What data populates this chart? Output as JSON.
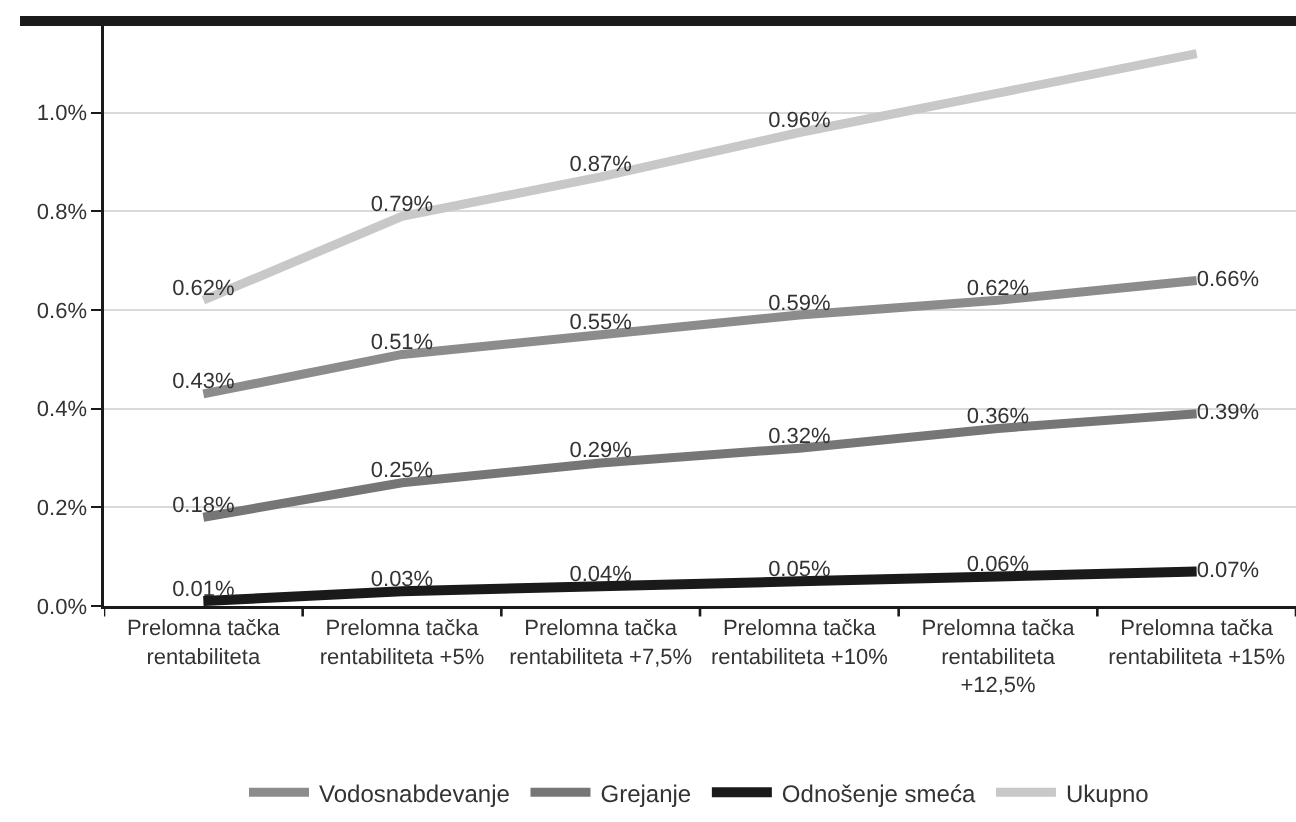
{
  "chart_data": {
    "type": "line",
    "categories": [
      "Prelomna tačka\nrentabiliteta",
      "Prelomna tačka\nrentabiliteta +5%",
      "Prelomna tačka\nrentabiliteta +7,5%",
      "Prelomna tačka\nrentabiliteta +10%",
      "Prelomna tačka\nrentabiliteta\n+12,5%",
      "Prelomna tačka\nrentabiliteta +15%"
    ],
    "series": [
      {
        "name": "Vodosnabdevanje",
        "color": "#8c8c8c",
        "values": [
          0.43,
          0.51,
          0.55,
          0.59,
          0.62,
          0.66
        ],
        "value_labels": [
          "0.43%",
          "0.51%",
          "0.55%",
          "0.59%",
          "0.62%",
          "0.66%"
        ]
      },
      {
        "name": "Grejanje",
        "color": "#767676",
        "values": [
          0.18,
          0.25,
          0.29,
          0.32,
          0.36,
          0.39
        ],
        "value_labels": [
          "0.18%",
          "0.25%",
          "0.29%",
          "0.32%",
          "0.36%",
          "0.39%"
        ]
      },
      {
        "name": "Odnošenje smeća",
        "color": "#1a1a1a",
        "values": [
          0.01,
          0.03,
          0.04,
          0.05,
          0.06,
          0.07
        ],
        "value_labels": [
          "0.01%",
          "0.03%",
          "0.04%",
          "0.05%",
          "0.06%",
          "0.07%"
        ]
      },
      {
        "name": "Ukupno",
        "color": "#c8c8c8",
        "values": [
          0.62,
          0.79,
          0.87,
          0.96,
          1.04,
          1.12
        ],
        "value_labels": [
          "0.62%",
          "0.79%",
          "0.87%",
          "0.96%",
          null,
          null
        ]
      }
    ],
    "ylim": [
      0,
      1.18
    ],
    "yticks": [
      {
        "value": 0,
        "label": "0.0%"
      },
      {
        "value": 0.2,
        "label": "0.2%"
      },
      {
        "value": 0.4,
        "label": "0.4%"
      },
      {
        "value": 0.6,
        "label": "0.6%"
      },
      {
        "value": 0.8,
        "label": "0.8%"
      },
      {
        "value": 1.0,
        "label": "1.0%"
      }
    ],
    "grid": "y",
    "legend": "bottom"
  }
}
